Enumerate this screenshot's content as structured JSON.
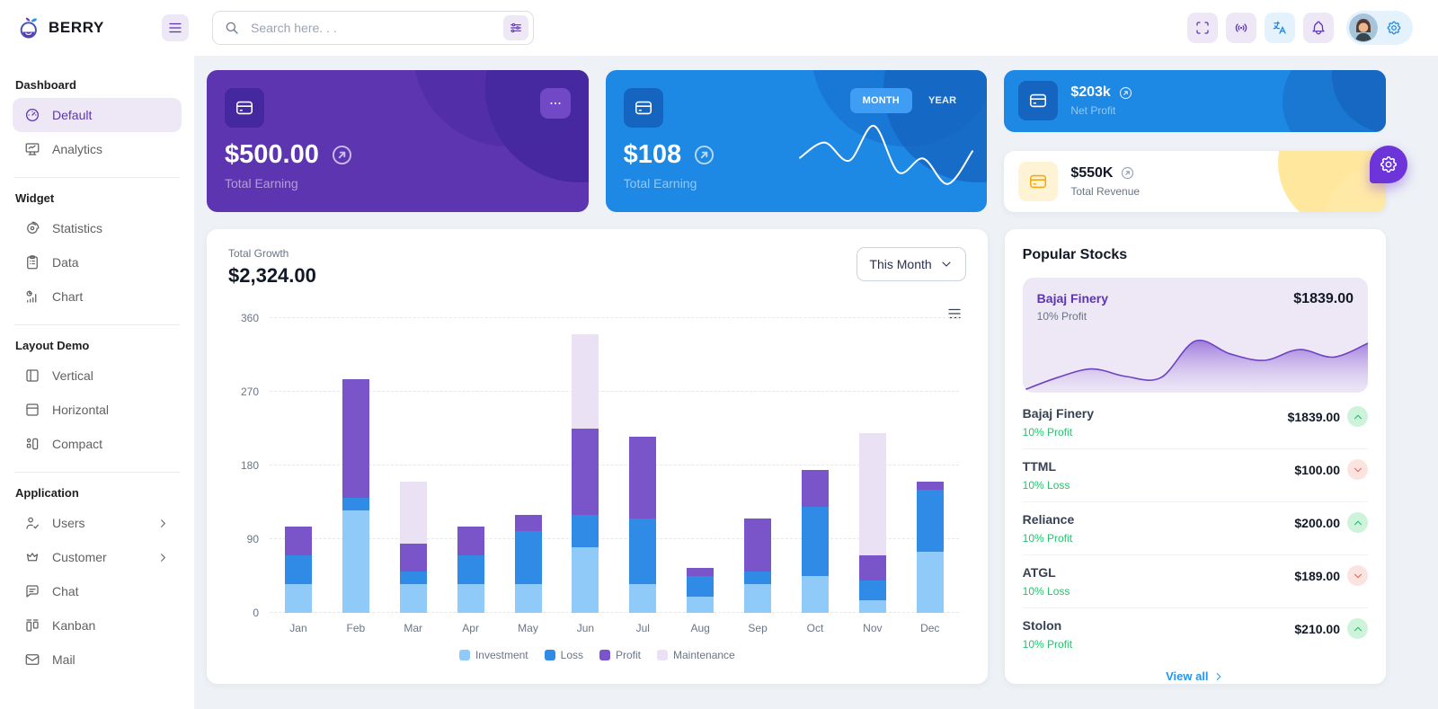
{
  "header": {
    "brand": "BERRY",
    "search_placeholder": "Search here. . ."
  },
  "sidebar": {
    "groups": [
      {
        "label": "Dashboard",
        "items": [
          {
            "label": "Default",
            "icon": "gauge",
            "active": true
          },
          {
            "label": "Analytics",
            "icon": "device-analytics"
          }
        ]
      },
      {
        "label": "Widget",
        "items": [
          {
            "label": "Statistics",
            "icon": "chart-arcs"
          },
          {
            "label": "Data",
            "icon": "clipboard"
          },
          {
            "label": "Chart",
            "icon": "chart-infographic"
          }
        ]
      },
      {
        "label": "Layout Demo",
        "items": [
          {
            "label": "Vertical",
            "icon": "layout-vertical"
          },
          {
            "label": "Horizontal",
            "icon": "layout-horizontal"
          },
          {
            "label": "Compact",
            "icon": "layout-compact"
          }
        ]
      },
      {
        "label": "Application",
        "items": [
          {
            "label": "Users",
            "icon": "user-check",
            "chevron": true
          },
          {
            "label": "Customer",
            "icon": "crown",
            "chevron": true
          },
          {
            "label": "Chat",
            "icon": "message"
          },
          {
            "label": "Kanban",
            "icon": "kanban"
          },
          {
            "label": "Mail",
            "icon": "mail"
          }
        ]
      }
    ]
  },
  "cards": {
    "total_earning": {
      "value": "$500.00",
      "label": "Total Earning"
    },
    "total_order": {
      "value": "$108",
      "label": "Total Earning",
      "toggles": [
        "MONTH",
        "YEAR"
      ],
      "active_toggle": "MONTH"
    },
    "net_profit": {
      "value": "$203k",
      "label": "Net Profit"
    },
    "total_revenue": {
      "value": "$550K",
      "label": "Total Revenue"
    }
  },
  "growth": {
    "title": "Total Growth",
    "amount": "$2,324.00",
    "period": "This Month"
  },
  "stocks": {
    "title": "Popular Stocks",
    "featured": {
      "name": "Bajaj Finery",
      "sub": "10% Profit",
      "price": "$1839.00"
    },
    "items": [
      {
        "name": "Bajaj Finery",
        "sub": "10% Profit",
        "price": "$1839.00",
        "trend": "up"
      },
      {
        "name": "TTML",
        "sub": "10% Loss",
        "price": "$100.00",
        "trend": "down"
      },
      {
        "name": "Reliance",
        "sub": "10% Profit",
        "price": "$200.00",
        "trend": "up"
      },
      {
        "name": "ATGL",
        "sub": "10% Loss",
        "price": "$189.00",
        "trend": "down"
      },
      {
        "name": "Stolon",
        "sub": "10% Profit",
        "price": "$210.00",
        "trend": "up"
      }
    ],
    "view_all": "View all"
  },
  "chart_data": [
    {
      "id": "total-growth",
      "type": "bar",
      "stacked": true,
      "title": "Total Growth",
      "categories": [
        "Jan",
        "Feb",
        "Mar",
        "Apr",
        "May",
        "Jun",
        "Jul",
        "Aug",
        "Sep",
        "Oct",
        "Nov",
        "Dec"
      ],
      "series": [
        {
          "name": "Investment",
          "color": "#90caf9",
          "values": [
            35,
            125,
            35,
            35,
            35,
            80,
            35,
            20,
            35,
            45,
            15,
            75
          ]
        },
        {
          "name": "Loss",
          "color": "#2f8be6",
          "values": [
            35,
            15,
            15,
            35,
            65,
            40,
            80,
            25,
            15,
            85,
            25,
            75
          ]
        },
        {
          "name": "Profit",
          "color": "#7a54c9",
          "values": [
            35,
            145,
            35,
            35,
            20,
            105,
            100,
            10,
            65,
            45,
            30,
            10
          ]
        },
        {
          "name": "Maintenance",
          "color": "#eae1f5",
          "values": [
            0,
            0,
            75,
            0,
            0,
            115,
            0,
            0,
            0,
            0,
            150,
            0
          ]
        }
      ],
      "ylim": [
        0,
        360
      ],
      "yticks": [
        0,
        90,
        180,
        270,
        360
      ],
      "grid": "horizontal-dashed",
      "legend_position": "bottom"
    },
    {
      "id": "total-order-sparkline",
      "type": "line",
      "values": [
        45,
        66,
        41,
        89,
        25,
        44,
        9,
        54
      ],
      "color": "#ffffff"
    },
    {
      "id": "bajaj-finery-area",
      "type": "area",
      "values": [
        2,
        14,
        22,
        15,
        14,
        48,
        36,
        30,
        40,
        33,
        46
      ],
      "ylim": [
        0,
        60
      ],
      "color": "#6f42c1"
    }
  ],
  "colors": {
    "primary": "#2196f3",
    "primary_dark": "#1e88e5",
    "secondary": "#673ab7",
    "secondary_dark": "#5e35b1",
    "success": "#22c46e",
    "error": "#d84315",
    "warning": "#ffc107"
  }
}
